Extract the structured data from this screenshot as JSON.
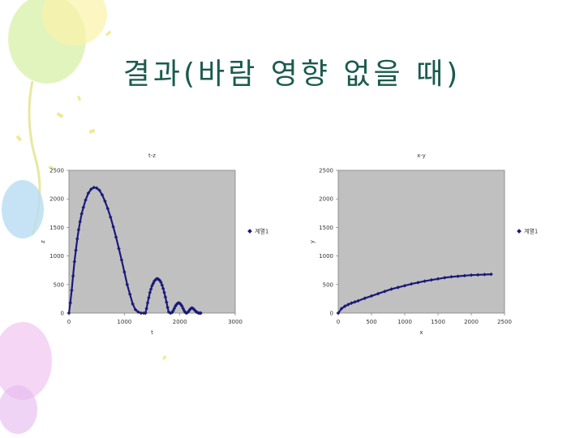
{
  "slide": {
    "title": "결과(바람 영향 없을 때)"
  },
  "colors": {
    "title": "#1b5b4e",
    "plot_area": "#c0c0c0",
    "series": "#1a1a7a"
  },
  "chart_data": [
    {
      "type": "scatter",
      "title": "t-z",
      "xlabel": "t",
      "ylabel": "z",
      "xlim": [
        0,
        3000
      ],
      "ylim": [
        0,
        2500
      ],
      "xticks": [
        "0",
        "1000",
        "2000",
        "3000"
      ],
      "yticks": [
        "0",
        "500",
        "1000",
        "1500",
        "2000",
        "2500"
      ],
      "grid": false,
      "legend_position": "right",
      "series": [
        {
          "name": "계열1",
          "x": [
            0,
            25,
            50,
            75,
            100,
            125,
            150,
            175,
            200,
            230,
            260,
            300,
            350,
            400,
            450,
            500,
            550,
            600,
            650,
            700,
            750,
            800,
            850,
            900,
            950,
            1000,
            1050,
            1100,
            1150,
            1200,
            1250,
            1300,
            1350,
            1380,
            1400,
            1420,
            1440,
            1460,
            1480,
            1500,
            1520,
            1540,
            1560,
            1580,
            1600,
            1620,
            1640,
            1660,
            1680,
            1700,
            1720,
            1740,
            1760,
            1780,
            1800,
            1830,
            1860,
            1880,
            1900,
            1920,
            1940,
            1960,
            1980,
            2000,
            2020,
            2040,
            2060,
            2080,
            2100,
            2120,
            2140,
            2160,
            2180,
            2200,
            2220,
            2240,
            2260,
            2280,
            2300,
            2320,
            2340,
            2360,
            2380
          ],
          "y": [
            0,
            180,
            400,
            650,
            900,
            1100,
            1300,
            1460,
            1600,
            1740,
            1850,
            1980,
            2100,
            2170,
            2200,
            2190,
            2150,
            2070,
            1960,
            1830,
            1680,
            1510,
            1330,
            1130,
            930,
            720,
            500,
            330,
            160,
            60,
            20,
            0,
            0,
            0,
            80,
            180,
            270,
            360,
            420,
            480,
            520,
            560,
            580,
            600,
            600,
            590,
            570,
            540,
            490,
            430,
            360,
            280,
            190,
            100,
            20,
            0,
            10,
            40,
            80,
            120,
            150,
            170,
            180,
            170,
            150,
            120,
            80,
            40,
            10,
            0,
            10,
            30,
            60,
            80,
            90,
            80,
            60,
            40,
            20,
            10,
            0,
            0,
            0
          ]
        }
      ]
    },
    {
      "type": "scatter",
      "title": "x-y",
      "xlabel": "x",
      "ylabel": "y",
      "xlim": [
        0,
        2500
      ],
      "ylim": [
        0,
        2500
      ],
      "xticks": [
        "0",
        "500",
        "1000",
        "1500",
        "2000",
        "2500"
      ],
      "yticks": [
        "0",
        "500",
        "1000",
        "1500",
        "2000",
        "2500"
      ],
      "grid": false,
      "legend_position": "right",
      "series": [
        {
          "name": "계열1",
          "x": [
            0,
            50,
            100,
            150,
            200,
            250,
            300,
            400,
            500,
            600,
            700,
            800,
            900,
            1000,
            1100,
            1200,
            1300,
            1400,
            1500,
            1600,
            1700,
            1800,
            1900,
            2000,
            2100,
            2200,
            2300
          ],
          "y": [
            0,
            80,
            120,
            150,
            175,
            195,
            215,
            260,
            300,
            340,
            380,
            420,
            450,
            480,
            510,
            535,
            560,
            580,
            600,
            620,
            635,
            645,
            655,
            665,
            670,
            675,
            680
          ]
        }
      ]
    }
  ]
}
